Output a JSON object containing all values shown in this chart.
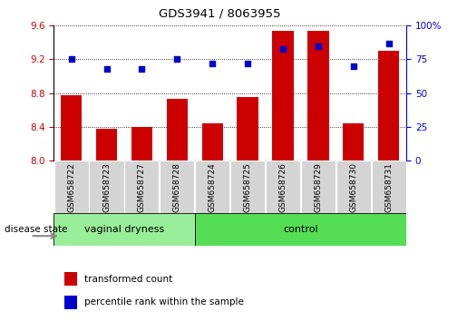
{
  "title": "GDS3941 / 8063955",
  "samples": [
    "GSM658722",
    "GSM658723",
    "GSM658727",
    "GSM658728",
    "GSM658724",
    "GSM658725",
    "GSM658726",
    "GSM658729",
    "GSM658730",
    "GSM658731"
  ],
  "bar_values": [
    8.78,
    8.38,
    8.4,
    8.73,
    8.44,
    8.75,
    9.54,
    9.54,
    8.44,
    9.3
  ],
  "dot_values": [
    75,
    68,
    68,
    75,
    72,
    72,
    83,
    85,
    70,
    87
  ],
  "bar_color": "#cc0000",
  "dot_color": "#0000cc",
  "ylim_left": [
    8.0,
    9.6
  ],
  "ylim_right": [
    0,
    100
  ],
  "yticks_left": [
    8.0,
    8.4,
    8.8,
    9.2,
    9.6
  ],
  "yticks_right": [
    0,
    25,
    50,
    75,
    100
  ],
  "ytick_labels_right": [
    "0",
    "25",
    "50",
    "75",
    "100%"
  ],
  "group1_count": 4,
  "group2_count": 6,
  "group1_label": "vaginal dryness",
  "group2_label": "control",
  "group_label_prefix": "disease state",
  "group1_bg": "#99ee99",
  "group2_bg": "#55dd55",
  "legend_bar_label": "transformed count",
  "legend_dot_label": "percentile rank within the sample",
  "bar_width": 0.6,
  "ax_bg": "#ffffff",
  "xtick_box_color": "#d4d4d4"
}
